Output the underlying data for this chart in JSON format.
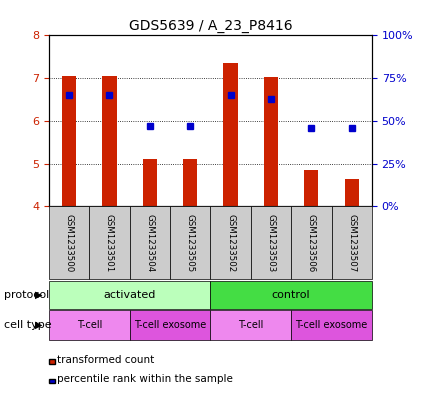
{
  "title": "GDS5639 / A_23_P8416",
  "samples": [
    "GSM1233500",
    "GSM1233501",
    "GSM1233504",
    "GSM1233505",
    "GSM1233502",
    "GSM1233503",
    "GSM1233506",
    "GSM1233507"
  ],
  "bar_values": [
    7.05,
    7.05,
    5.1,
    5.1,
    7.35,
    7.02,
    4.85,
    4.65
  ],
  "bar_base": 4.0,
  "percentile_values": [
    65,
    65,
    47,
    47,
    65,
    63,
    46,
    46
  ],
  "bar_color": "#cc2200",
  "dot_color": "#0000cc",
  "ylim_left": [
    4,
    8
  ],
  "ylim_right": [
    0,
    100
  ],
  "yticks_left": [
    4,
    5,
    6,
    7,
    8
  ],
  "yticks_right": [
    0,
    25,
    50,
    75,
    100
  ],
  "ytick_labels_right": [
    "0%",
    "25%",
    "50%",
    "75%",
    "100%"
  ],
  "legend_red_label": "transformed count",
  "legend_blue_label": "percentile rank within the sample",
  "protocol_row_label": "protocol",
  "cell_type_row_label": "cell type",
  "activated_color": "#bbffbb",
  "control_color": "#44dd44",
  "tcell_color": "#ee88ee",
  "texosome_color": "#dd55dd",
  "sample_bg_color": "#cccccc",
  "title_fontsize": 10,
  "left_col_color_left": "#cc2200",
  "left_col_color_right": "#0000cc",
  "cell_groups": [
    {
      "label": "T-cell",
      "start": 0,
      "end": 2,
      "color": "#ee88ee"
    },
    {
      "label": "T-cell exosome",
      "start": 2,
      "end": 4,
      "color": "#dd55dd"
    },
    {
      "label": "T-cell",
      "start": 4,
      "end": 6,
      "color": "#ee88ee"
    },
    {
      "label": "T-cell exosome",
      "start": 6,
      "end": 8,
      "color": "#dd55dd"
    }
  ]
}
